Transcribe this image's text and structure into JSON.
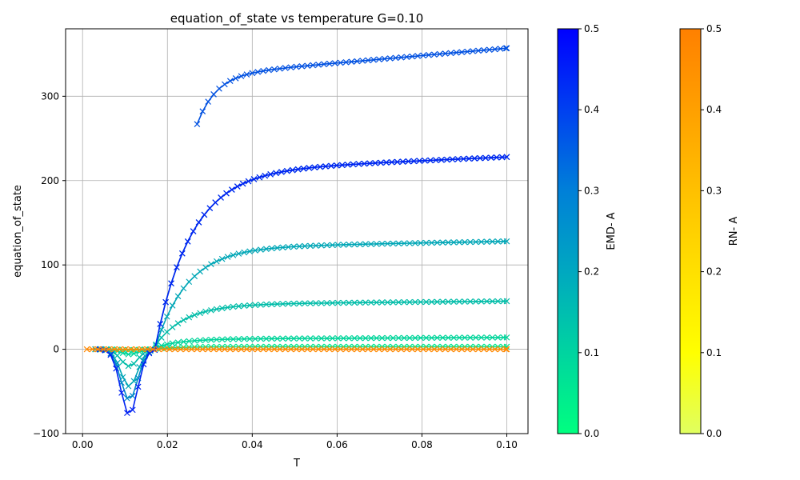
{
  "chart_data": {
    "type": "line",
    "title": "equation_of_state vs temperature G=0.10",
    "xlabel": "T",
    "ylabel": "equation_of_state",
    "xlim": [
      -0.004,
      0.105
    ],
    "ylim": [
      -100,
      380
    ],
    "xticks": [
      0.0,
      0.02,
      0.04,
      0.06,
      0.08,
      0.1
    ],
    "xtick_labels": [
      "0.00",
      "0.02",
      "0.04",
      "0.06",
      "0.08",
      "0.10"
    ],
    "yticks": [
      -100,
      0,
      100,
      200,
      300
    ],
    "ytick_labels": [
      "−100",
      "0",
      "100",
      "200",
      "300"
    ],
    "grid": true,
    "marker": "x",
    "curve_shape": "eos_T (approximate reconstruction of plotted curves)",
    "emd_series": [
      {
        "A": 0.02,
        "color": "#00e68c",
        "T_min": 0.003,
        "y_min": -1,
        "T_dip": 0.011,
        "t0": 0.016,
        "y_plateau": 3,
        "y_end": 3,
        "tau": 0.005
      },
      {
        "A": 0.06,
        "color": "#00d49a",
        "T_min": 0.003,
        "y_min": -6,
        "T_dip": 0.011,
        "t0": 0.016,
        "y_plateau": 12,
        "y_end": 14,
        "tau": 0.006
      },
      {
        "A": 0.12,
        "color": "#00bca8",
        "T_min": 0.003,
        "y_min": -20,
        "T_dip": 0.011,
        "t0": 0.0165,
        "y_plateau": 53,
        "y_end": 57,
        "tau": 0.007
      },
      {
        "A": 0.18,
        "color": "#00a6b6",
        "T_min": 0.003,
        "y_min": -44,
        "T_dip": 0.011,
        "t0": 0.017,
        "y_plateau": 120,
        "y_end": 128,
        "tau": 0.0075
      },
      {
        "A": 0.26,
        "color": "#0088c8",
        "T_min": 0.004,
        "y_min": -60,
        "T_dip": 0.011,
        "t0": 0.017,
        "y_plateau": 210,
        "y_end": 228,
        "tau": 0.0085
      },
      {
        "A": 0.36,
        "color": "#0050e0",
        "T_min": 0.004,
        "y_min": -78,
        "T_dip": 0.011,
        "t0": 0.017,
        "y_plateau": 325,
        "y_end": 357,
        "tau": 0.0045,
        "T_start": 0.027,
        "y_start": 267
      },
      {
        "A": 0.45,
        "color": "#0022f2",
        "T_min": 0.004,
        "y_min": -78,
        "T_dip": 0.011,
        "t0": 0.017,
        "y_plateau": 210,
        "y_end": 228,
        "tau": 0.0085
      }
    ],
    "rn_series": [
      {
        "A": 0.48,
        "color": "#ff8800",
        "T_min": 0.001,
        "y_const": 0
      }
    ],
    "colorbars": [
      {
        "label": "EMD- A",
        "range": [
          0.0,
          0.5
        ],
        "ticks": [
          "0.0",
          "0.1",
          "0.2",
          "0.3",
          "0.4",
          "0.5"
        ],
        "colors": [
          "#00ff80",
          "#00d4a0",
          "#00a8c0",
          "#0080d8",
          "#0040f0",
          "#0000ff"
        ]
      },
      {
        "label": "RN- A",
        "range": [
          0.0,
          0.5
        ],
        "ticks": [
          "0.0",
          "0.1",
          "0.2",
          "0.3",
          "0.4",
          "0.5"
        ],
        "colors": [
          "#e0ff60",
          "#ffff00",
          "#ffe000",
          "#ffc000",
          "#ffa000",
          "#ff8000"
        ]
      }
    ]
  }
}
